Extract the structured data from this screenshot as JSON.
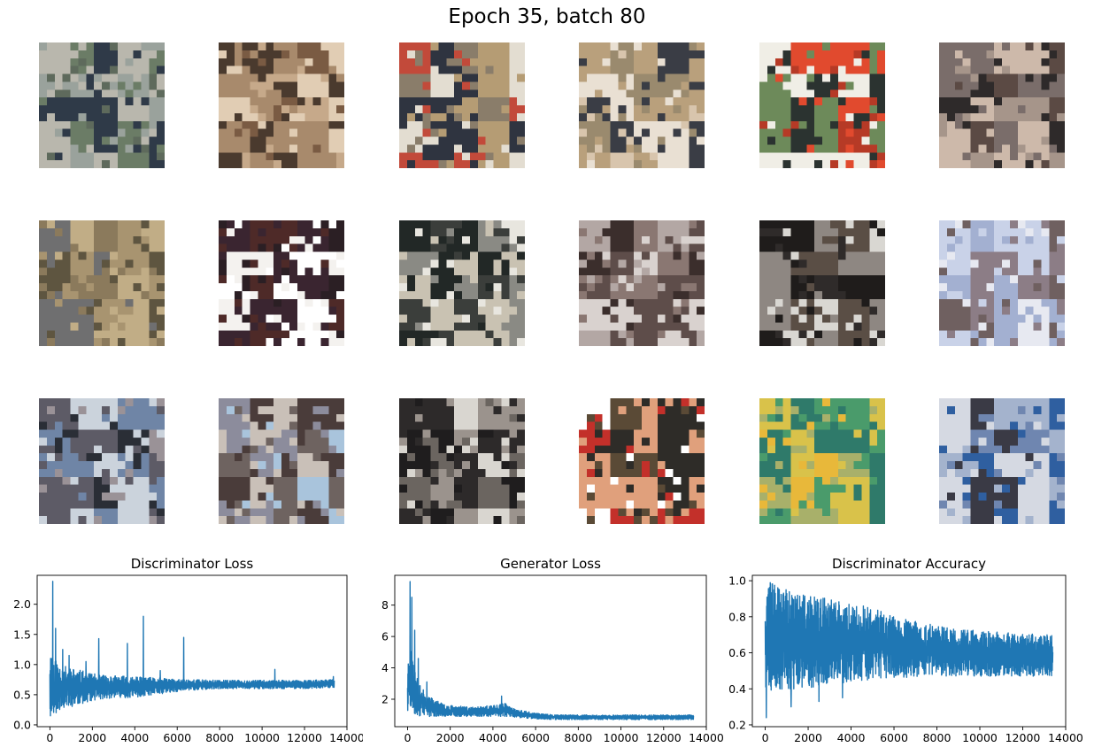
{
  "figure": {
    "suptitle": "Epoch 35, batch 80"
  },
  "samples": {
    "rows": 3,
    "cols": 6,
    "palettes": [
      [
        "#5e6a5c",
        "#9aa29c",
        "#2f3a48",
        "#b9b7ad",
        "#6b7c66"
      ],
      [
        "#c6a98a",
        "#7a5b43",
        "#e1cdb4",
        "#4a3a2e",
        "#a88a6c"
      ],
      [
        "#e3ddd1",
        "#8a7d6a",
        "#2f3440",
        "#c24a3a",
        "#b59c74"
      ],
      [
        "#d8c5ad",
        "#9a8a6e",
        "#3a3d45",
        "#b9a07c",
        "#e9e0d3"
      ],
      [
        "#e14a2e",
        "#2b3330",
        "#6d8a5a",
        "#f0eee6",
        "#b63a26"
      ],
      [
        "#5b4a44",
        "#a6958a",
        "#2e2a2a",
        "#cdb9aa",
        "#7a6d6a"
      ],
      [
        "#8b7a5c",
        "#a89470",
        "#5e5540",
        "#c1ad86",
        "#6f6f70"
      ],
      [
        "#f4f2ef",
        "#2b1f24",
        "#4e2a28",
        "#ffffff",
        "#3a2530"
      ],
      [
        "#e8e6df",
        "#3b3e3b",
        "#8a8a84",
        "#c9c2b2",
        "#222826"
      ],
      [
        "#3b2e2c",
        "#8a7772",
        "#d9d2cf",
        "#5e4d4a",
        "#b3a7a4"
      ],
      [
        "#2f2b2a",
        "#d9d7d2",
        "#5a4e45",
        "#8e8782",
        "#1f1c1b"
      ],
      [
        "#c9d2e8",
        "#8c7d86",
        "#e7e9f1",
        "#a3b0d1",
        "#6f6060"
      ],
      [
        "#5d5b66",
        "#2a2e36",
        "#cbd3dc",
        "#6f85a6",
        "#9a9297"
      ],
      [
        "#8c8c9c",
        "#4a3c3a",
        "#a9c4dc",
        "#6e6360",
        "#c9c0b8"
      ],
      [
        "#2d2a2a",
        "#d9d6d0",
        "#6b6560",
        "#1f1d1e",
        "#9b938d"
      ],
      [
        "#ffffff",
        "#c3302a",
        "#2e2c28",
        "#e0a07c",
        "#5a4a36"
      ],
      [
        "#4a9b6b",
        "#d9c24a",
        "#e8b83a",
        "#2f7a6a",
        "#a8b06a"
      ],
      [
        "#6f86b0",
        "#d5d9e2",
        "#3a3a45",
        "#a4b3cd",
        "#2f5fa0"
      ]
    ]
  },
  "chart_data": [
    {
      "type": "line",
      "title": "Discriminator Loss",
      "xlim": [
        -600,
        14000
      ],
      "ylim": [
        -0.03,
        2.48
      ],
      "xticks": [
        "0",
        "2000",
        "4000",
        "6000",
        "8000",
        "10000",
        "12000",
        "14000"
      ],
      "xtick_values": [
        0,
        2000,
        4000,
        6000,
        8000,
        10000,
        12000,
        14000
      ],
      "yticks": [
        "0.0",
        "0.5",
        "1.0",
        "1.5",
        "2.0"
      ],
      "ytick_values": [
        0.0,
        0.5,
        1.0,
        1.5,
        2.0
      ],
      "color": "#1f77b4",
      "x_max": 13400,
      "envelope": {
        "x": [
          0,
          200,
          500,
          1000,
          1500,
          2000,
          3000,
          4000,
          5000,
          6000,
          7000,
          8000,
          10000,
          12000,
          13400
        ],
        "lo": [
          0.1,
          0.15,
          0.25,
          0.3,
          0.35,
          0.4,
          0.45,
          0.45,
          0.5,
          0.55,
          0.58,
          0.6,
          0.6,
          0.6,
          0.62
        ],
        "hi": [
          1.3,
          1.1,
          1.0,
          0.95,
          0.9,
          0.85,
          0.82,
          0.8,
          0.78,
          0.76,
          0.75,
          0.74,
          0.74,
          0.74,
          0.75
        ]
      },
      "spikes": [
        [
          130,
          2.38
        ],
        [
          260,
          1.6
        ],
        [
          600,
          1.25
        ],
        [
          900,
          1.15
        ],
        [
          1700,
          1.05
        ],
        [
          2300,
          1.43
        ],
        [
          3650,
          1.35
        ],
        [
          4400,
          1.8
        ],
        [
          5200,
          0.9
        ],
        [
          6300,
          1.45
        ],
        [
          10600,
          0.92
        ],
        [
          13350,
          0.8
        ]
      ]
    },
    {
      "type": "line",
      "title": "Generator Loss",
      "xlim": [
        -600,
        14000
      ],
      "ylim": [
        0.25,
        9.9
      ],
      "xticks": [
        "0",
        "2000",
        "4000",
        "6000",
        "8000",
        "10000",
        "12000",
        "14000"
      ],
      "xtick_values": [
        0,
        2000,
        4000,
        6000,
        8000,
        10000,
        12000,
        14000
      ],
      "yticks": [
        "2",
        "4",
        "6",
        "8"
      ],
      "ytick_values": [
        2,
        4,
        6,
        8
      ],
      "color": "#1f77b4",
      "x_max": 13400,
      "envelope": {
        "x": [
          0,
          100,
          300,
          600,
          1000,
          1500,
          2000,
          3000,
          4000,
          4500,
          5000,
          6000,
          7000,
          8000,
          10000,
          12000,
          13400
        ],
        "lo": [
          0.6,
          1.0,
          1.0,
          0.9,
          0.9,
          0.9,
          0.9,
          0.9,
          0.9,
          0.9,
          0.85,
          0.75,
          0.7,
          0.7,
          0.7,
          0.7,
          0.7
        ],
        "hi": [
          4.0,
          6.5,
          4.0,
          2.8,
          2.2,
          1.8,
          1.6,
          1.5,
          1.6,
          1.8,
          1.4,
          1.1,
          1.0,
          1.0,
          1.0,
          1.0,
          1.0
        ]
      },
      "spikes": [
        [
          110,
          9.5
        ],
        [
          200,
          8.5
        ],
        [
          330,
          6.4
        ],
        [
          500,
          4.6
        ],
        [
          900,
          3.1
        ],
        [
          4400,
          2.2
        ]
      ]
    },
    {
      "type": "line",
      "title": "Discriminator Accuracy",
      "xlim": [
        -600,
        14000
      ],
      "ylim": [
        0.19,
        1.03
      ],
      "xticks": [
        "0",
        "2000",
        "4000",
        "6000",
        "8000",
        "10000",
        "12000",
        "14000"
      ],
      "xtick_values": [
        0,
        2000,
        4000,
        6000,
        8000,
        10000,
        12000,
        14000
      ],
      "yticks": [
        "0.2",
        "0.4",
        "0.6",
        "0.8",
        "1.0"
      ],
      "ytick_values": [
        0.2,
        0.4,
        0.6,
        0.8,
        1.0
      ],
      "color": "#1f77b4",
      "x_max": 13400,
      "envelope": {
        "x": [
          0,
          500,
          1000,
          2000,
          3000,
          4000,
          5000,
          6000,
          8000,
          10000,
          12000,
          13400
        ],
        "lo": [
          0.4,
          0.38,
          0.38,
          0.4,
          0.42,
          0.44,
          0.45,
          0.46,
          0.47,
          0.47,
          0.47,
          0.47
        ],
        "hi": [
          1.0,
          0.98,
          0.95,
          0.92,
          0.9,
          0.88,
          0.85,
          0.8,
          0.75,
          0.72,
          0.71,
          0.7
        ]
      },
      "spikes": [
        [
          50,
          0.24
        ],
        [
          1200,
          0.3
        ],
        [
          2500,
          0.33
        ],
        [
          3600,
          0.35
        ]
      ]
    }
  ]
}
